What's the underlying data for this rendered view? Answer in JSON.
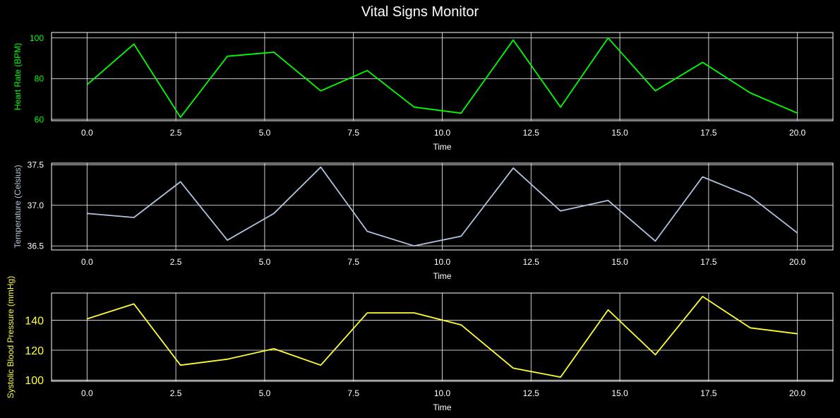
{
  "title": "Vital Signs Monitor",
  "chart_data": [
    {
      "type": "line",
      "xlabel": "Time",
      "ylabel": "Heart Rate (BPM)",
      "color": "#00ff00",
      "xlim": [
        -1,
        21
      ],
      "ylim": [
        59.3,
        102.7
      ],
      "xticks": [
        "0.0",
        "2.5",
        "5.0",
        "7.5",
        "10.0",
        "12.5",
        "15.0",
        "17.5",
        "20.0"
      ],
      "yticks": [
        "60",
        "80",
        "100"
      ],
      "grid": true,
      "x": [
        0,
        1.32,
        2.63,
        3.95,
        5.26,
        6.58,
        7.89,
        9.21,
        10.53,
        12.0,
        13.33,
        14.67,
        16.0,
        17.33,
        18.67,
        20.0
      ],
      "y": [
        77,
        97,
        61,
        91,
        93,
        74,
        84,
        66,
        63,
        99,
        66,
        100,
        74,
        88,
        73,
        63
      ]
    },
    {
      "type": "line",
      "xlabel": "Time",
      "ylabel": "Temperature (Celsius)",
      "color": "#b0c4de",
      "xlim": [
        -1,
        21
      ],
      "ylim": [
        36.45,
        37.52
      ],
      "xticks": [
        "0.0",
        "2.5",
        "5.0",
        "7.5",
        "10.0",
        "12.5",
        "15.0",
        "17.5",
        "20.0"
      ],
      "yticks": [
        "36.5",
        "37.0",
        "37.5"
      ],
      "grid": true,
      "x": [
        0,
        1.32,
        2.63,
        3.95,
        5.26,
        6.58,
        7.89,
        9.21,
        10.53,
        12.0,
        13.33,
        14.67,
        16.0,
        17.33,
        18.67,
        20.0
      ],
      "y": [
        36.9,
        36.85,
        37.29,
        36.57,
        36.9,
        37.47,
        36.68,
        36.5,
        36.62,
        37.46,
        36.93,
        37.06,
        36.56,
        37.35,
        37.11,
        36.66
      ]
    },
    {
      "type": "line",
      "xlabel": "Time",
      "ylabel": "Systolic Blood Pressure (mmHg)",
      "color": "#ffff33",
      "xlim": [
        -1,
        21
      ],
      "ylim": [
        99.2,
        158.3
      ],
      "xticks": [
        "0.0",
        "2.5",
        "5.0",
        "7.5",
        "10.0",
        "12.5",
        "15.0",
        "17.5",
        "20.0"
      ],
      "yticks": [
        "100",
        "120",
        "140"
      ],
      "grid": true,
      "x": [
        0,
        1.32,
        2.63,
        3.95,
        5.26,
        6.58,
        7.89,
        9.21,
        10.53,
        12.0,
        13.33,
        14.67,
        16.0,
        17.33,
        18.67,
        20.0
      ],
      "y": [
        141,
        151,
        110,
        114,
        121,
        110,
        145,
        145,
        137,
        108,
        102,
        147,
        117,
        156,
        135,
        131
      ]
    }
  ]
}
